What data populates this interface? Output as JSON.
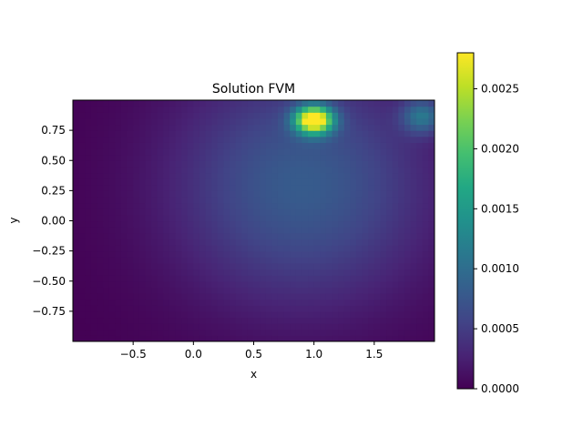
{
  "chart_data": [
    {
      "type": "heatmap",
      "title": "Solution FVM",
      "xlabel": "x",
      "ylabel": "y",
      "xlim": [
        -1.0,
        2.0
      ],
      "ylim": [
        -1.0,
        1.0
      ],
      "x_ticks": [
        -0.5,
        0.0,
        0.5,
        1.0,
        1.5
      ],
      "x_tick_labels": [
        "−0.5",
        "0.0",
        "0.5",
        "1.0",
        "1.5"
      ],
      "y_ticks": [
        0.75,
        0.5,
        0.25,
        0.0,
        -0.25,
        -0.5,
        -0.75
      ],
      "y_tick_labels": [
        "0.75",
        "0.50",
        "0.25",
        "0.00",
        "−0.25",
        "−0.50",
        "−0.75"
      ],
      "colormap": "viridis",
      "value_range": [
        0.0,
        0.0028
      ],
      "features": [
        {
          "kind": "peak",
          "x": 1.0,
          "y": 0.84,
          "value": 0.0028
        },
        {
          "kind": "secondary-peak",
          "x": 1.9,
          "y": 0.87,
          "value": 0.0009
        },
        {
          "kind": "broad-plume",
          "x": 0.9,
          "y": 0.3,
          "value": 0.0008
        }
      ],
      "colorbar": {
        "ticks": [
          0.0,
          0.0005,
          0.001,
          0.0015,
          0.002,
          0.0025
        ],
        "tick_labels": [
          "0.0000",
          "0.0005",
          "0.0010",
          "0.0015",
          "0.0020",
          "0.0025"
        ]
      }
    }
  ]
}
